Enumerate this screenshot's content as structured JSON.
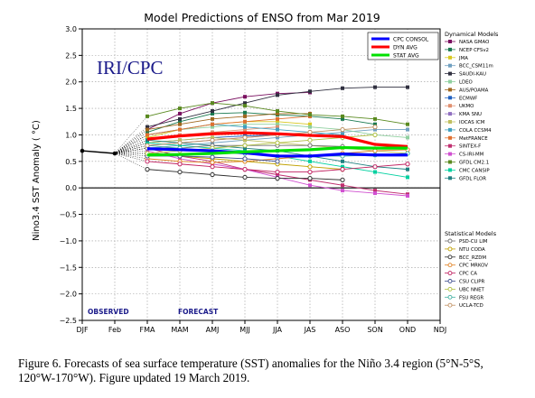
{
  "chart_data": {
    "type": "line",
    "title": "Model Predictions of ENSO from Mar 2019",
    "watermark": "IRI/CPC",
    "ylabel": "Nino3.4 SST Anomaly ( °C)",
    "ylim": [
      -2.5,
      3.0
    ],
    "yticks": [
      -2.5,
      -2.0,
      -1.5,
      -1.0,
      -0.5,
      0.0,
      0.5,
      1.0,
      1.5,
      2.0,
      2.5,
      3.0
    ],
    "ytick_labels": [
      "−2.5",
      "−2.0",
      "−1.5",
      "−1.0",
      "−0.5",
      "0.0",
      "0.5",
      "1.0",
      "1.5",
      "2.0",
      "2.5",
      "3.0"
    ],
    "categories": [
      "DJF",
      "Feb",
      "FMA",
      "MAM",
      "AMJ",
      "MJJ",
      "JJA",
      "JAS",
      "ASO",
      "SON",
      "OND",
      "NDJ"
    ],
    "observed_label": "OBSERVED",
    "forecast_label": "FORECAST",
    "observed": [
      0.7,
      0.65
    ],
    "legend_avg": [
      {
        "name": "CPC CONSOL",
        "color": "#0000ff"
      },
      {
        "name": "DYN AVG",
        "color": "#ff0000"
      },
      {
        "name": "STAT AVG",
        "color": "#00e000"
      }
    ],
    "averages": [
      {
        "name": "CPC CONSOL",
        "color": "#0000ff",
        "values": [
          0.74,
          0.72,
          0.7,
          0.66,
          0.6,
          0.6,
          0.64,
          0.62,
          0.62
        ]
      },
      {
        "name": "DYN AVG",
        "color": "#ff0000",
        "values": [
          0.92,
          0.98,
          1.02,
          1.04,
          1.02,
          0.99,
          0.97,
          0.82,
          0.78
        ]
      },
      {
        "name": "STAT AVG",
        "color": "#00e000",
        "values": [
          0.62,
          0.63,
          0.65,
          0.68,
          0.7,
          0.72,
          0.76,
          0.75,
          0.75
        ]
      }
    ],
    "dynamical_title": "Dynamical Models",
    "dynamical": [
      {
        "name": "NASA GMAO",
        "color": "#7a1060",
        "marker": "square",
        "values": [
          1.1,
          1.4,
          1.6,
          1.72,
          1.78,
          1.8
        ]
      },
      {
        "name": "NCEP CFSv2",
        "color": "#1a7a50",
        "marker": "square",
        "values": [
          1.05,
          1.25,
          1.4,
          1.42,
          1.38,
          1.35,
          1.3,
          1.2
        ]
      },
      {
        "name": "JMA",
        "color": "#d8c820",
        "marker": "square",
        "values": [
          0.95,
          1.1,
          1.2,
          1.25,
          1.25,
          1.2
        ]
      },
      {
        "name": "BCC_CSM11m",
        "color": "#70a0c0",
        "marker": "square",
        "values": [
          0.75,
          0.8,
          0.85,
          0.9,
          0.95,
          1.0,
          1.05,
          1.1,
          1.1
        ]
      },
      {
        "name": "SAUDI-KAU",
        "color": "#303040",
        "marker": "square",
        "values": [
          1.15,
          1.3,
          1.45,
          1.6,
          1.75,
          1.82,
          1.88,
          1.9,
          1.9
        ]
      },
      {
        "name": "LDEO",
        "color": "#90d0a0",
        "marker": "square",
        "values": [
          1.0,
          1.1,
          1.15,
          1.2,
          1.2,
          1.15,
          1.1,
          1.0,
          0.95
        ]
      },
      {
        "name": "AUS/POAMA",
        "color": "#a06820",
        "marker": "square",
        "values": [
          1.1,
          1.2,
          1.3,
          1.35,
          1.4,
          1.4
        ]
      },
      {
        "name": "ECMWF",
        "color": "#2060c0",
        "marker": "square",
        "values": [
          0.85,
          0.9,
          0.95,
          0.98,
          1.0
        ]
      },
      {
        "name": "UKMO",
        "color": "#e09070",
        "marker": "square",
        "values": [
          0.9,
          1.0,
          1.05,
          1.1,
          1.15
        ]
      },
      {
        "name": "KMA SNU",
        "color": "#9070c0",
        "marker": "square",
        "values": [
          0.8,
          0.85,
          0.9,
          0.95,
          1.0,
          1.0
        ]
      },
      {
        "name": "IOCAS ICM",
        "color": "#c0c060",
        "marker": "square",
        "values": [
          0.85,
          0.9,
          0.95,
          0.9,
          0.85,
          0.8,
          0.75,
          0.7,
          0.65
        ]
      },
      {
        "name": "COLA CCSM4",
        "color": "#40a0c0",
        "marker": "square",
        "values": [
          1.0,
          1.1,
          1.2,
          1.15,
          1.1,
          1.05,
          1.0
        ]
      },
      {
        "name": "MetFRANCE",
        "color": "#e07030",
        "marker": "square",
        "values": [
          1.0,
          1.1,
          1.2,
          1.25,
          1.3,
          1.35
        ]
      },
      {
        "name": "SINTEX-F",
        "color": "#c03070",
        "marker": "square",
        "values": [
          0.75,
          0.6,
          0.5,
          0.35,
          0.25,
          0.15,
          0.05,
          -0.05,
          -0.12
        ]
      },
      {
        "name": "CS-IRI-MM",
        "color": "#d050d0",
        "marker": "square",
        "values": [
          0.7,
          0.55,
          0.45,
          0.35,
          0.2,
          0.05,
          -0.05,
          -0.1,
          -0.15
        ]
      },
      {
        "name": "GFDL CM2.1",
        "color": "#5a8a20",
        "marker": "square",
        "values": [
          1.35,
          1.5,
          1.6,
          1.55,
          1.45,
          1.38,
          1.35,
          1.3,
          1.2
        ]
      },
      {
        "name": "CMC CANSIP",
        "color": "#00d0a0",
        "marker": "square",
        "values": [
          0.85,
          0.8,
          0.75,
          0.7,
          0.6,
          0.5,
          0.4,
          0.3,
          0.2
        ]
      },
      {
        "name": "GFDL FLOR",
        "color": "#208080",
        "marker": "square",
        "values": [
          0.9,
          0.85,
          0.8,
          0.75,
          0.7,
          0.6,
          0.5,
          0.4,
          0.35
        ]
      }
    ],
    "statistical_title": "Statistical Models",
    "statistical": [
      {
        "name": "PSD-CU LIM",
        "color": "#707070",
        "marker": "circle",
        "values": [
          0.75,
          0.75,
          0.8,
          0.8,
          0.8,
          0.8,
          0.78
        ]
      },
      {
        "name": "NTU CODA",
        "color": "#c0a000",
        "marker": "circle",
        "values": [
          0.65,
          0.6,
          0.55,
          0.5,
          0.45,
          0.4,
          0.35
        ]
      },
      {
        "name": "BCC_RZDM",
        "color": "#303030",
        "marker": "circle",
        "values": [
          0.35,
          0.3,
          0.25,
          0.2,
          0.18,
          0.18,
          0.15
        ]
      },
      {
        "name": "CPC MRKOV",
        "color": "#e08020",
        "marker": "circle",
        "values": [
          0.55,
          0.5,
          0.48,
          0.5,
          0.55,
          0.6,
          0.65,
          0.7,
          0.72
        ]
      },
      {
        "name": "CPC CA",
        "color": "#c02060",
        "marker": "circle",
        "values": [
          0.5,
          0.45,
          0.4,
          0.35,
          0.3,
          0.3,
          0.35,
          0.4,
          0.45
        ]
      },
      {
        "name": "CSU CLIPR",
        "color": "#405090",
        "marker": "circle",
        "values": [
          0.6,
          0.6,
          0.58,
          0.55,
          0.5
        ]
      },
      {
        "name": "UBC NNET",
        "color": "#b0c040",
        "marker": "circle",
        "values": [
          0.65,
          0.7,
          0.75,
          0.8,
          0.85,
          0.9,
          0.95,
          1.0
        ]
      },
      {
        "name": "FSU REGR",
        "color": "#40b0a0",
        "marker": "circle",
        "values": [
          0.8,
          0.75,
          0.7,
          0.65,
          0.6,
          0.6,
          0.6,
          0.62,
          0.65
        ]
      },
      {
        "name": "UCLA-TCD",
        "color": "#c09060",
        "marker": "circle",
        "values": [
          0.8,
          0.85,
          0.9,
          0.95,
          1.0,
          1.05,
          1.1,
          1.15
        ]
      }
    ],
    "grid": true
  },
  "caption": "Figure 6. Forecasts of sea surface temperature (SST) anomalies for the Niño 3.4 region (5°N-5°S, 120°W-170°W). Figure updated 19 March 2019."
}
